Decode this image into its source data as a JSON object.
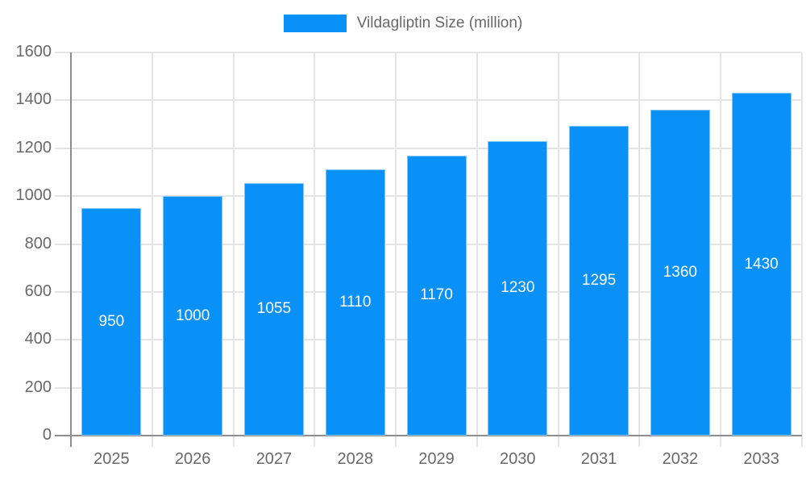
{
  "legend": {
    "items": [
      {
        "label": "Vildagliptin Size (million)",
        "color": "#0a91f8"
      }
    ]
  },
  "chart_data": {
    "type": "bar",
    "title": "",
    "categories": [
      "2025",
      "2026",
      "2027",
      "2028",
      "2029",
      "2030",
      "2031",
      "2032",
      "2033"
    ],
    "series": [
      {
        "name": "Vildagliptin Size (million)",
        "values": [
          950,
          1000,
          1055,
          1110,
          1170,
          1230,
          1295,
          1360,
          1430
        ]
      }
    ],
    "value_labels": [
      "950",
      "1000",
      "1055",
      "1110",
      "1170",
      "1230",
      "1295",
      "1360",
      "1430"
    ],
    "xlabel": "",
    "ylabel": "",
    "ylim": [
      0,
      1600
    ],
    "ytick_step": 200,
    "ytick_labels": [
      "0",
      "200",
      "400",
      "600",
      "800",
      "1000",
      "1200",
      "1400",
      "1600"
    ],
    "grid": true,
    "legend_position": "top",
    "bar_color": "#0a91f8",
    "bar_border_color": "#82c7fb",
    "value_label_color": "#ffffff"
  },
  "colors": {
    "background": "#ffffff",
    "axis_line": "#8e8e8e",
    "grid_line": "#e5e5e5",
    "tick_text": "#686868",
    "legend_text": "#686868"
  }
}
